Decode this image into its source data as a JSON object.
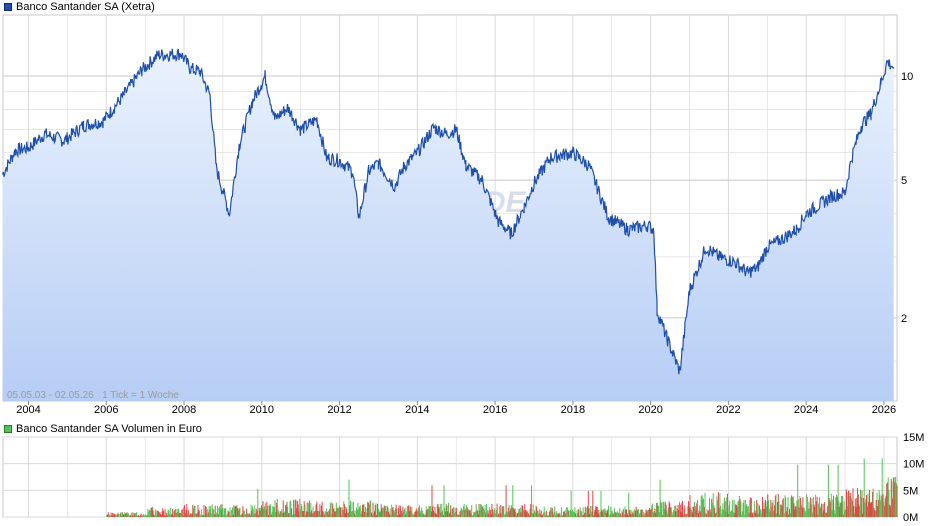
{
  "price_legend": {
    "label": "Banco Santander SA (Xetra)",
    "color": "#1f4fa8"
  },
  "volume_legend": {
    "label": "Banco Santander SA Volumen in Euro",
    "color": "#58c058"
  },
  "range_info": "05.05.03 - 02.05.26   1 Tick = 1 Woche",
  "watermark": "ARIVA.DE",
  "colors": {
    "line": "#1f4fa8",
    "fill_top": "#eaf2fd",
    "fill_bottom": "#b6cdf5",
    "vol_up": "#58c058",
    "vol_down": "#e04848",
    "grid": "#d9d9d9"
  },
  "chart_data": [
    {
      "type": "area",
      "title": "Banco Santander SA (Xetra)",
      "xlabel": "",
      "ylabel": "",
      "y_scale": "log",
      "ylim": [
        1.15,
        15
      ],
      "xlim": [
        "2003-05-05",
        "2026-05-02"
      ],
      "x_ticks": [
        "2004",
        "2006",
        "2008",
        "2010",
        "2012",
        "2014",
        "2016",
        "2018",
        "2020",
        "2022",
        "2024",
        "2026"
      ],
      "y_ticks": [
        10,
        5,
        2
      ],
      "grid": true,
      "series": [
        {
          "name": "Banco Santander SA (Xetra)",
          "x": [
            "2003-05",
            "2003-09",
            "2004-01",
            "2004-06",
            "2004-12",
            "2005-06",
            "2005-12",
            "2006-06",
            "2006-12",
            "2007-05",
            "2007-12",
            "2008-03",
            "2008-06",
            "2008-09",
            "2008-11",
            "2009-03",
            "2009-06",
            "2009-10",
            "2010-02",
            "2010-05",
            "2010-09",
            "2011-01",
            "2011-06",
            "2011-09",
            "2012-01",
            "2012-05",
            "2012-07",
            "2012-10",
            "2013-01",
            "2013-06",
            "2013-09",
            "2014-01",
            "2014-06",
            "2014-10",
            "2015-01",
            "2015-04",
            "2015-09",
            "2016-02",
            "2016-06",
            "2016-10",
            "2017-01",
            "2017-06",
            "2017-09",
            "2018-01",
            "2018-06",
            "2018-12",
            "2019-06",
            "2019-12",
            "2020-02",
            "2020-03",
            "2020-06",
            "2020-10",
            "2021-01",
            "2021-06",
            "2021-10",
            "2022-03",
            "2022-07",
            "2022-10",
            "2023-01",
            "2023-06",
            "2023-10",
            "2024-01",
            "2024-06",
            "2024-09",
            "2025-01",
            "2025-03",
            "2025-06",
            "2025-09",
            "2025-12",
            "2026-02",
            "2026-04"
          ],
          "values": [
            5.2,
            6.1,
            6.2,
            6.8,
            6.5,
            7.2,
            7.4,
            8.7,
            10.4,
            11.5,
            11.6,
            10.5,
            10.3,
            8.8,
            5.4,
            4.0,
            6.3,
            8.4,
            10.0,
            7.5,
            8.1,
            7.0,
            7.5,
            5.8,
            5.7,
            5.3,
            3.9,
            5.3,
            5.6,
            4.8,
            5.5,
            6.0,
            7.1,
            6.8,
            7.0,
            5.5,
            5.0,
            3.8,
            3.5,
            4.2,
            4.9,
            5.8,
            5.9,
            6.0,
            5.5,
            3.9,
            3.6,
            3.7,
            3.6,
            2.1,
            1.75,
            1.4,
            2.4,
            3.2,
            3.0,
            2.9,
            2.7,
            2.8,
            3.2,
            3.4,
            3.6,
            4.0,
            4.3,
            4.5,
            4.6,
            5.8,
            7.2,
            7.8,
            9.5,
            11.0,
            10.6
          ]
        }
      ]
    },
    {
      "type": "bar",
      "title": "Banco Santander SA Volumen in Euro",
      "xlabel": "",
      "ylabel": "",
      "ylim": [
        0,
        15
      ],
      "y_unit": "M",
      "y_tick_labels": [
        "15M",
        "10M",
        "5M",
        "0M"
      ],
      "grid": true,
      "series": [
        {
          "name": "Banco Santander SA Volumen in Euro",
          "x": [
            "2003",
            "2004",
            "2005",
            "2006",
            "2007",
            "2008",
            "2009",
            "2010",
            "2011",
            "2012",
            "2013",
            "2014",
            "2015",
            "2016",
            "2017",
            "2018",
            "2019",
            "2020",
            "2021",
            "2022",
            "2023",
            "2024",
            "2025",
            "2026"
          ],
          "values": [
            0.0,
            0.0,
            0.0,
            0.6,
            1.2,
            1.6,
            1.5,
            2.2,
            2.0,
            2.0,
            1.6,
            1.7,
            1.6,
            1.7,
            1.4,
            1.4,
            1.3,
            2.0,
            3.0,
            2.6,
            2.8,
            2.8,
            3.8,
            5.0
          ]
        }
      ]
    }
  ]
}
